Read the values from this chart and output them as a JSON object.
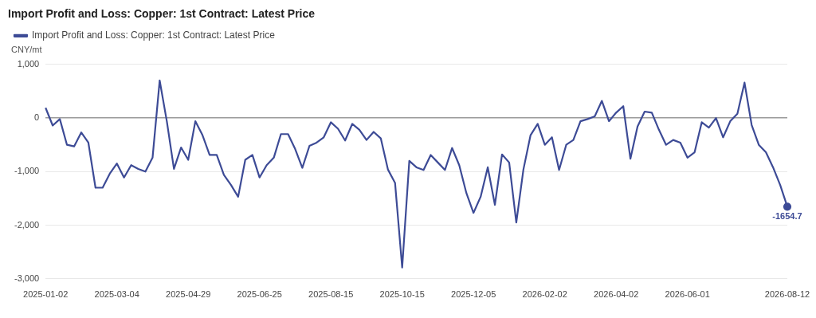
{
  "chart_data": {
    "type": "line",
    "title": "Import Profit and Loss: Copper: 1st Contract: Latest Price",
    "ylabel": "CNY/mt",
    "categories": [
      "2025-01-02",
      null,
      null,
      null,
      null,
      null,
      null,
      null,
      null,
      null,
      "2025-03-04",
      null,
      null,
      null,
      null,
      null,
      null,
      null,
      null,
      null,
      "2025-04-29",
      null,
      null,
      null,
      null,
      null,
      null,
      null,
      null,
      null,
      "2025-06-25",
      null,
      null,
      null,
      null,
      null,
      null,
      null,
      null,
      null,
      "2025-08-15",
      null,
      null,
      null,
      null,
      null,
      null,
      null,
      null,
      null,
      "2025-10-15",
      null,
      null,
      null,
      null,
      null,
      null,
      null,
      null,
      null,
      "2025-12-05",
      null,
      null,
      null,
      null,
      null,
      null,
      null,
      null,
      null,
      "2026-02-02",
      null,
      null,
      null,
      null,
      null,
      null,
      null,
      null,
      null,
      "2026-04-02",
      null,
      null,
      null,
      null,
      null,
      null,
      null,
      null,
      null,
      "2026-06-01",
      null,
      null,
      null,
      null,
      null,
      null,
      null,
      null,
      null,
      null,
      null,
      null,
      null,
      "2026-08-12"
    ],
    "series": [
      {
        "name": "Import Profit and Loss: Copper: 1st Contract: Latest Price",
        "color": "#3d4b96",
        "values": [
          190,
          -140,
          -20,
          -500,
          -530,
          -270,
          -460,
          -1300,
          -1300,
          -1040,
          -850,
          -1110,
          -880,
          -950,
          -1000,
          -740,
          700,
          -60,
          -950,
          -550,
          -780,
          -60,
          -320,
          -690,
          -690,
          -1060,
          -1250,
          -1470,
          -780,
          -690,
          -1110,
          -880,
          -740,
          -300,
          -300,
          -580,
          -930,
          -520,
          -460,
          -360,
          -80,
          -200,
          -420,
          -110,
          -220,
          -410,
          -260,
          -380,
          -960,
          -1210,
          -2790,
          -800,
          -920,
          -970,
          -690,
          -830,
          -970,
          -560,
          -880,
          -1400,
          -1770,
          -1470,
          -920,
          -1620,
          -680,
          -830,
          -1950,
          -960,
          -320,
          -110,
          -500,
          -360,
          -970,
          -500,
          -410,
          -60,
          -20,
          30,
          320,
          -60,
          100,
          220,
          -760,
          -160,
          120,
          100,
          -220,
          -500,
          -410,
          -460,
          -740,
          -640,
          -80,
          -180,
          0,
          -360,
          -60,
          80,
          660,
          -130,
          -500,
          -640,
          -920,
          -1250,
          -1654.7
        ],
        "value_labels": [
          null,
          null,
          null,
          null,
          null,
          null,
          null,
          null,
          null,
          null,
          null,
          null,
          null,
          null,
          null,
          null,
          null,
          null,
          null,
          null,
          null,
          null,
          null,
          null,
          null,
          null,
          null,
          null,
          null,
          null,
          null,
          null,
          null,
          null,
          null,
          null,
          null,
          null,
          null,
          null,
          null,
          null,
          null,
          null,
          null,
          null,
          null,
          null,
          null,
          null,
          null,
          null,
          null,
          null,
          null,
          null,
          null,
          null,
          null,
          null,
          null,
          null,
          null,
          null,
          null,
          null,
          null,
          null,
          null,
          null,
          null,
          null,
          null,
          null,
          null,
          null,
          null,
          null,
          null,
          null,
          null,
          null,
          null,
          null,
          null,
          null,
          null,
          null,
          null,
          null,
          null,
          null,
          null,
          null,
          null,
          null,
          null,
          null,
          null,
          null,
          null,
          null,
          null,
          null,
          "-1654.7"
        ]
      }
    ],
    "ylim": [
      -3000,
      1000
    ],
    "yticks": [
      {
        "value": 1000,
        "label": "1,000"
      },
      0,
      {
        "value": -1000,
        "label": "-1,000"
      },
      {
        "value": -2000,
        "label": "-2,000"
      },
      {
        "value": -3000,
        "label": "-3,000"
      }
    ],
    "grid": "y",
    "legend": "top left"
  }
}
